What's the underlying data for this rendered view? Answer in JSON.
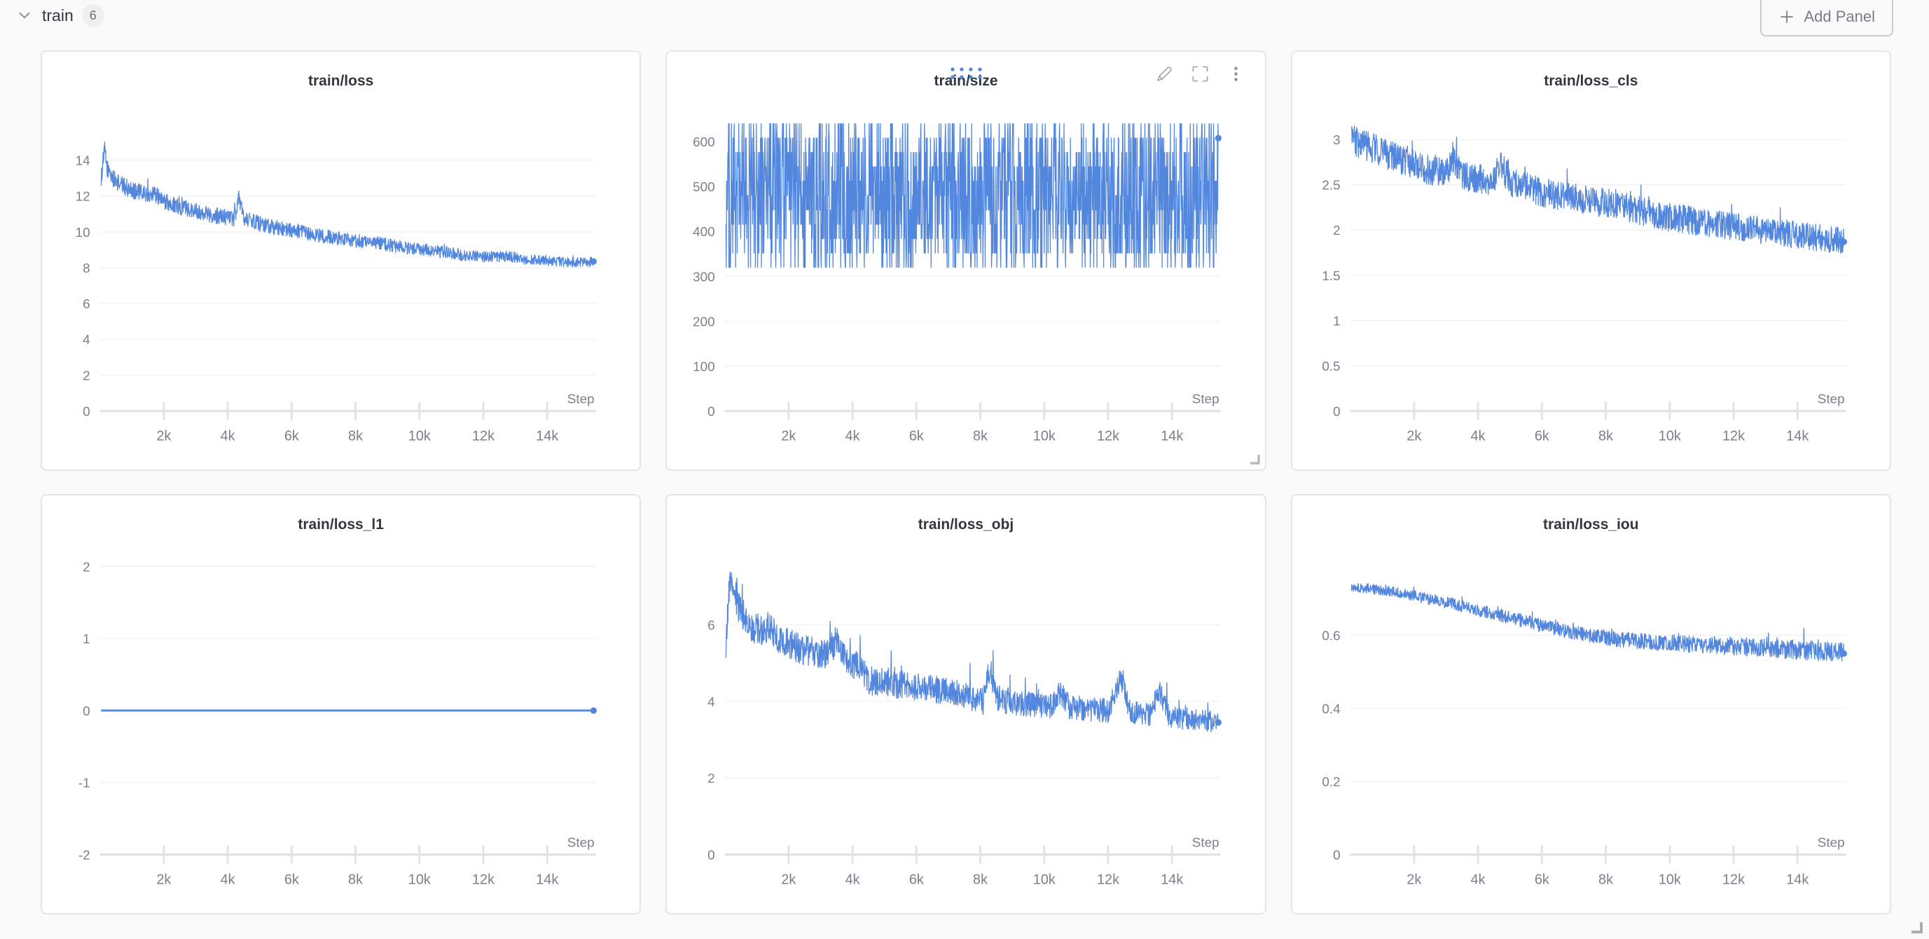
{
  "header": {
    "section_title": "train",
    "panel_count": "6",
    "add_panel_label": "Add Panel"
  },
  "colors": {
    "accent_blue": "#5387DD",
    "grid_line": "#F0F0F2",
    "axis_line": "#E3E3E7",
    "tick_text": "#7B808A",
    "panel_bg": "#FFFFFF",
    "page_bg": "#FAFAFA"
  },
  "chart_data": [
    {
      "type": "line",
      "title": "train/loss",
      "xlabel": "Step",
      "x_max": 15520,
      "x_ticks": [
        {
          "v": 2000,
          "label": "2k"
        },
        {
          "v": 4000,
          "label": "4k"
        },
        {
          "v": 6000,
          "label": "6k"
        },
        {
          "v": 8000,
          "label": "8k"
        },
        {
          "v": 10000,
          "label": "10k"
        },
        {
          "v": 12000,
          "label": "12k"
        },
        {
          "v": 14000,
          "label": "14k"
        }
      ],
      "ylim": [
        0,
        16.16
      ],
      "y_ticks": [
        {
          "v": 0,
          "label": "0"
        },
        {
          "v": 2,
          "label": "2"
        },
        {
          "v": 4,
          "label": "4"
        },
        {
          "v": 6,
          "label": "6"
        },
        {
          "v": 8,
          "label": "8"
        },
        {
          "v": 10,
          "label": "10"
        },
        {
          "v": 12,
          "label": "12"
        },
        {
          "v": 14,
          "label": "14"
        }
      ],
      "legend": false,
      "grid": true,
      "series": {
        "mode": "trend",
        "trend": [
          [
            40,
            13.0
          ],
          [
            90,
            13.8
          ],
          [
            150,
            14.6
          ],
          [
            220,
            13.6
          ],
          [
            300,
            13.3
          ],
          [
            450,
            12.9
          ],
          [
            700,
            12.6
          ],
          [
            1000,
            12.35
          ],
          [
            1400,
            12.1
          ],
          [
            1700,
            12.15
          ],
          [
            2000,
            11.7
          ],
          [
            2400,
            11.45
          ],
          [
            3000,
            11.2
          ],
          [
            3600,
            10.9
          ],
          [
            4200,
            10.75
          ],
          [
            4350,
            11.9
          ],
          [
            4500,
            10.8
          ],
          [
            5000,
            10.45
          ],
          [
            5600,
            10.2
          ],
          [
            6200,
            10.0
          ],
          [
            6800,
            9.8
          ],
          [
            7400,
            9.65
          ],
          [
            8000,
            9.5
          ],
          [
            8600,
            9.4
          ],
          [
            9200,
            9.2
          ],
          [
            9800,
            9.05
          ],
          [
            10400,
            8.95
          ],
          [
            11000,
            8.8
          ],
          [
            11600,
            8.65
          ],
          [
            12200,
            8.6
          ],
          [
            12800,
            8.65
          ],
          [
            13400,
            8.45
          ],
          [
            14000,
            8.4
          ],
          [
            14600,
            8.3
          ],
          [
            15100,
            8.3
          ],
          [
            15450,
            8.35
          ]
        ],
        "noise": [
          0.5,
          0.27
        ],
        "spike": {
          "prob": 0.02,
          "scale": 1.5
        },
        "end_value": 8.35,
        "end_dot": true,
        "stroke_width": 1.3
      }
    },
    {
      "type": "line",
      "title": "train/size",
      "xlabel": "Step",
      "x_max": 15520,
      "x_ticks": [
        {
          "v": 2000,
          "label": "2k"
        },
        {
          "v": 4000,
          "label": "4k"
        },
        {
          "v": 6000,
          "label": "6k"
        },
        {
          "v": 8000,
          "label": "8k"
        },
        {
          "v": 10000,
          "label": "10k"
        },
        {
          "v": 12000,
          "label": "12k"
        },
        {
          "v": 14000,
          "label": "14k"
        }
      ],
      "ylim": [
        0,
        645
      ],
      "y_ticks": [
        {
          "v": 0,
          "label": "0"
        },
        {
          "v": 100,
          "label": "100"
        },
        {
          "v": 200,
          "label": "200"
        },
        {
          "v": 300,
          "label": "300"
        },
        {
          "v": 400,
          "label": "400"
        },
        {
          "v": 500,
          "label": "500"
        },
        {
          "v": 600,
          "label": "600"
        }
      ],
      "legend": false,
      "grid": true,
      "series": {
        "mode": "uniform",
        "range": [
          320,
          640
        ],
        "quantize": 32,
        "end_value": 608,
        "end_dot": true,
        "stroke_width": 1.3
      }
    },
    {
      "type": "line",
      "title": "train/loss_cls",
      "xlabel": "Step",
      "x_max": 15520,
      "x_ticks": [
        {
          "v": 2000,
          "label": "2k"
        },
        {
          "v": 4000,
          "label": "4k"
        },
        {
          "v": 6000,
          "label": "6k"
        },
        {
          "v": 8000,
          "label": "8k"
        },
        {
          "v": 10000,
          "label": "10k"
        },
        {
          "v": 12000,
          "label": "12k"
        },
        {
          "v": 14000,
          "label": "14k"
        }
      ],
      "ylim": [
        0,
        3.2
      ],
      "y_ticks": [
        {
          "v": 0,
          "label": "0"
        },
        {
          "v": 0.5,
          "label": "0.5"
        },
        {
          "v": 1,
          "label": "1"
        },
        {
          "v": 1.5,
          "label": "1.5"
        },
        {
          "v": 2,
          "label": "2"
        },
        {
          "v": 2.5,
          "label": "2.5"
        },
        {
          "v": 3,
          "label": "3"
        }
      ],
      "legend": false,
      "grid": true,
      "series": {
        "mode": "trend",
        "trend": [
          [
            40,
            3.0
          ],
          [
            400,
            2.95
          ],
          [
            800,
            2.9
          ],
          [
            1200,
            2.82
          ],
          [
            1600,
            2.78
          ],
          [
            2000,
            2.72
          ],
          [
            2500,
            2.66
          ],
          [
            3000,
            2.62
          ],
          [
            3200,
            2.8
          ],
          [
            3500,
            2.6
          ],
          [
            4000,
            2.56
          ],
          [
            4500,
            2.55
          ],
          [
            4700,
            2.75
          ],
          [
            5000,
            2.52
          ],
          [
            5500,
            2.48
          ],
          [
            6000,
            2.42
          ],
          [
            6500,
            2.38
          ],
          [
            7000,
            2.36
          ],
          [
            7500,
            2.32
          ],
          [
            8000,
            2.3
          ],
          [
            8500,
            2.26
          ],
          [
            9000,
            2.22
          ],
          [
            9500,
            2.18
          ],
          [
            10000,
            2.14
          ],
          [
            10500,
            2.12
          ],
          [
            11000,
            2.08
          ],
          [
            11500,
            2.06
          ],
          [
            12000,
            2.03
          ],
          [
            12500,
            2.02
          ],
          [
            13000,
            1.99
          ],
          [
            13500,
            1.97
          ],
          [
            14000,
            1.95
          ],
          [
            14500,
            1.92
          ],
          [
            15000,
            1.9
          ],
          [
            15450,
            1.89
          ]
        ],
        "noise": [
          0.17,
          0.15
        ],
        "spike": {
          "prob": 0.035,
          "scale": 1.3
        },
        "end_value": 1.87,
        "end_dot": true,
        "stroke_width": 1.3
      }
    },
    {
      "type": "line",
      "title": "train/loss_l1",
      "xlabel": "Step",
      "x_max": 15520,
      "x_ticks": [
        {
          "v": 2000,
          "label": "2k"
        },
        {
          "v": 4000,
          "label": "4k"
        },
        {
          "v": 6000,
          "label": "6k"
        },
        {
          "v": 8000,
          "label": "8k"
        },
        {
          "v": 10000,
          "label": "10k"
        },
        {
          "v": 12000,
          "label": "12k"
        },
        {
          "v": 14000,
          "label": "14k"
        }
      ],
      "ylim": [
        -2,
        2.02
      ],
      "y_ticks": [
        {
          "v": -2,
          "label": "-2"
        },
        {
          "v": -1,
          "label": "-1"
        },
        {
          "v": 0,
          "label": "0"
        },
        {
          "v": 1,
          "label": "1"
        },
        {
          "v": 2,
          "label": "2"
        }
      ],
      "legend": false,
      "grid": true,
      "series": {
        "mode": "trend",
        "trend": [
          [
            40,
            0
          ],
          [
            15450,
            0
          ]
        ],
        "noise": [
          0,
          0
        ],
        "end_value": 0,
        "end_dot": true,
        "stroke_width": 3
      }
    },
    {
      "type": "line",
      "title": "train/loss_obj",
      "xlabel": "Step",
      "x_max": 15520,
      "x_ticks": [
        {
          "v": 2000,
          "label": "2k"
        },
        {
          "v": 4000,
          "label": "4k"
        },
        {
          "v": 6000,
          "label": "6k"
        },
        {
          "v": 8000,
          "label": "8k"
        },
        {
          "v": 10000,
          "label": "10k"
        },
        {
          "v": 12000,
          "label": "12k"
        },
        {
          "v": 14000,
          "label": "14k"
        }
      ],
      "ylim": [
        0,
        7.56
      ],
      "y_ticks": [
        {
          "v": 0,
          "label": "0"
        },
        {
          "v": 2,
          "label": "2"
        },
        {
          "v": 4,
          "label": "4"
        },
        {
          "v": 6,
          "label": "6"
        }
      ],
      "legend": false,
      "grid": true,
      "series": {
        "mode": "trend",
        "trend": [
          [
            40,
            5.3
          ],
          [
            100,
            6.4
          ],
          [
            170,
            7.25
          ],
          [
            260,
            6.9
          ],
          [
            400,
            6.5
          ],
          [
            600,
            6.25
          ],
          [
            800,
            6.0
          ],
          [
            1100,
            5.85
          ],
          [
            1400,
            5.95
          ],
          [
            1700,
            5.6
          ],
          [
            2000,
            5.5
          ],
          [
            2400,
            5.35
          ],
          [
            2800,
            5.3
          ],
          [
            3200,
            5.2
          ],
          [
            3500,
            5.6
          ],
          [
            3800,
            5.1
          ],
          [
            4200,
            4.9
          ],
          [
            4500,
            4.55
          ],
          [
            4900,
            4.5
          ],
          [
            5400,
            4.45
          ],
          [
            5900,
            4.4
          ],
          [
            6400,
            4.35
          ],
          [
            7000,
            4.25
          ],
          [
            7600,
            4.15
          ],
          [
            8100,
            4.0
          ],
          [
            8300,
            4.9
          ],
          [
            8500,
            4.1
          ],
          [
            9000,
            3.95
          ],
          [
            9600,
            3.9
          ],
          [
            10200,
            3.85
          ],
          [
            10500,
            4.25
          ],
          [
            10800,
            3.85
          ],
          [
            11400,
            3.8
          ],
          [
            12000,
            3.75
          ],
          [
            12400,
            4.6
          ],
          [
            12700,
            3.7
          ],
          [
            13300,
            3.65
          ],
          [
            13600,
            4.3
          ],
          [
            13900,
            3.6
          ],
          [
            14500,
            3.55
          ],
          [
            15000,
            3.5
          ],
          [
            15450,
            3.45
          ]
        ],
        "noise": [
          0.42,
          0.28
        ],
        "spike": {
          "prob": 0.03,
          "scale": 1.8
        },
        "end_value": 3.45,
        "end_dot": true,
        "stroke_width": 1.3
      }
    },
    {
      "type": "line",
      "title": "train/loss_iou",
      "xlabel": "Step",
      "x_max": 15520,
      "x_ticks": [
        {
          "v": 2000,
          "label": "2k"
        },
        {
          "v": 4000,
          "label": "4k"
        },
        {
          "v": 6000,
          "label": "6k"
        },
        {
          "v": 8000,
          "label": "8k"
        },
        {
          "v": 10000,
          "label": "10k"
        },
        {
          "v": 12000,
          "label": "12k"
        },
        {
          "v": 14000,
          "label": "14k"
        }
      ],
      "ylim": [
        0,
        0.792
      ],
      "y_ticks": [
        {
          "v": 0,
          "label": "0"
        },
        {
          "v": 0.2,
          "label": "0.2"
        },
        {
          "v": 0.4,
          "label": "0.4"
        },
        {
          "v": 0.6,
          "label": "0.6"
        }
      ],
      "legend": false,
      "grid": true,
      "series": {
        "mode": "trend",
        "trend": [
          [
            40,
            0.732
          ],
          [
            600,
            0.728
          ],
          [
            1200,
            0.72
          ],
          [
            1800,
            0.712
          ],
          [
            2400,
            0.7
          ],
          [
            3000,
            0.69
          ],
          [
            3600,
            0.678
          ],
          [
            4200,
            0.664
          ],
          [
            4800,
            0.652
          ],
          [
            5400,
            0.64
          ],
          [
            6000,
            0.626
          ],
          [
            6600,
            0.614
          ],
          [
            7200,
            0.604
          ],
          [
            7800,
            0.595
          ],
          [
            8400,
            0.589
          ],
          [
            9000,
            0.584
          ],
          [
            9600,
            0.58
          ],
          [
            10200,
            0.578
          ],
          [
            10800,
            0.575
          ],
          [
            11400,
            0.572
          ],
          [
            12000,
            0.57
          ],
          [
            12600,
            0.567
          ],
          [
            13200,
            0.564
          ],
          [
            13800,
            0.561
          ],
          [
            14400,
            0.558
          ],
          [
            15000,
            0.555
          ],
          [
            15450,
            0.553
          ]
        ],
        "noise": [
          0.013,
          0.028
        ],
        "spike": {
          "prob": 0.03,
          "scale": 1.5
        },
        "end_value": 0.55,
        "end_dot": true,
        "stroke_width": 1.3
      }
    }
  ]
}
